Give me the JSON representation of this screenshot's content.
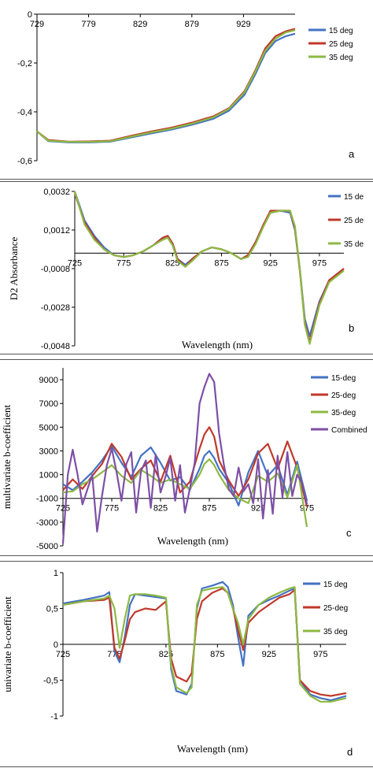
{
  "chart_data": [
    {
      "type": "line",
      "panel_letter": "a",
      "xlabel": "",
      "ylabel": "",
      "xlim": [
        729,
        979
      ],
      "ylim": [
        -0.6,
        0
      ],
      "x_ticks": [
        729,
        779,
        829,
        879,
        929
      ],
      "y_ticks": [
        0,
        -0.2,
        -0.4,
        -0.6
      ],
      "y_tick_labels": [
        "0",
        "-0,2",
        "-0,4",
        "-0,6"
      ],
      "x_axis_at": 0,
      "legend_position": "right",
      "series": [
        {
          "name": "15 deg",
          "color": "#4472C4",
          "x": [
            729,
            740,
            760,
            780,
            800,
            820,
            840,
            860,
            880,
            900,
            915,
            930,
            940,
            950,
            960,
            970,
            979
          ],
          "y": [
            -0.48,
            -0.52,
            -0.525,
            -0.525,
            -0.522,
            -0.505,
            -0.488,
            -0.472,
            -0.452,
            -0.428,
            -0.395,
            -0.33,
            -0.25,
            -0.16,
            -0.11,
            -0.09,
            -0.08
          ]
        },
        {
          "name": "25 deg",
          "color": "#C0392B",
          "x": [
            729,
            740,
            760,
            780,
            800,
            820,
            840,
            860,
            880,
            900,
            915,
            930,
            940,
            950,
            960,
            970,
            979
          ],
          "y": [
            -0.48,
            -0.515,
            -0.522,
            -0.521,
            -0.518,
            -0.498,
            -0.48,
            -0.464,
            -0.443,
            -0.418,
            -0.385,
            -0.315,
            -0.235,
            -0.14,
            -0.09,
            -0.07,
            -0.06
          ]
        },
        {
          "name": "35 deg",
          "color": "#8DB943",
          "x": [
            729,
            740,
            760,
            780,
            800,
            820,
            840,
            860,
            880,
            900,
            915,
            930,
            940,
            950,
            960,
            970,
            979
          ],
          "y": [
            -0.48,
            -0.518,
            -0.523,
            -0.523,
            -0.52,
            -0.502,
            -0.484,
            -0.468,
            -0.447,
            -0.422,
            -0.388,
            -0.32,
            -0.24,
            -0.15,
            -0.1,
            -0.075,
            -0.065
          ]
        }
      ]
    },
    {
      "type": "line",
      "panel_letter": "b",
      "xlabel": "Wavelength (nm)",
      "ylabel": "D2 Absorbance",
      "xlim": [
        725,
        1000
      ],
      "ylim": [
        -0.0048,
        0.0032
      ],
      "x_ticks": [
        725,
        775,
        825,
        875,
        925,
        975
      ],
      "y_ticks": [
        0.0032,
        0.0012,
        -0.0008,
        -0.0028,
        -0.0048
      ],
      "y_tick_labels": [
        "0,0032",
        "0,0012",
        "-0,0008",
        "-0,0028",
        "-0,0048"
      ],
      "x_axis_at": 0,
      "legend_position": "right",
      "series": [
        {
          "name": "15 de",
          "color": "#4472C4",
          "x": [
            725,
            735,
            745,
            755,
            765,
            775,
            785,
            795,
            805,
            815,
            820,
            825,
            830,
            838,
            845,
            855,
            865,
            875,
            885,
            895,
            902,
            910,
            918,
            925,
            935,
            945,
            950,
            955,
            960,
            965,
            975,
            985,
            1000
          ],
          "y": [
            0.0032,
            0.0017,
            0.0009,
            0.0003,
            -0.0001,
            -0.0002,
            -0.0001,
            0.0001,
            0.0004,
            0.0008,
            0.0009,
            0.0005,
            -0.0003,
            -0.0006,
            -0.0003,
            0.0001,
            0.0003,
            0.0002,
            0.0,
            -0.0003,
            -0.0001,
            0.0006,
            0.0015,
            0.0021,
            0.0022,
            0.0021,
            0.0012,
            -0.0008,
            -0.0034,
            -0.0043,
            -0.0025,
            -0.0014,
            -0.0008
          ]
        },
        {
          "name": "25 de",
          "color": "#C0392B",
          "x": [
            725,
            735,
            745,
            755,
            765,
            775,
            785,
            795,
            805,
            815,
            820,
            825,
            830,
            838,
            845,
            855,
            865,
            875,
            885,
            895,
            902,
            910,
            918,
            925,
            935,
            945,
            950,
            955,
            960,
            965,
            975,
            985,
            1000
          ],
          "y": [
            0.0031,
            0.0016,
            0.0008,
            0.0002,
            -0.0001,
            -0.0002,
            -0.0001,
            0.0001,
            0.0004,
            0.0008,
            0.0009,
            0.0005,
            -0.0003,
            -0.0007,
            -0.0003,
            0.0001,
            0.0003,
            0.0002,
            0.0,
            -0.0003,
            -0.0001,
            0.0006,
            0.0015,
            0.0022,
            0.0022,
            0.0022,
            0.0013,
            -0.0009,
            -0.0036,
            -0.0046,
            -0.0026,
            -0.0014,
            -0.0008
          ]
        },
        {
          "name": "35 de",
          "color": "#8DB943",
          "x": [
            725,
            735,
            745,
            755,
            765,
            775,
            785,
            795,
            805,
            815,
            820,
            825,
            830,
            838,
            845,
            855,
            865,
            875,
            885,
            895,
            902,
            910,
            918,
            925,
            935,
            945,
            950,
            955,
            960,
            965,
            975,
            985,
            1000
          ],
          "y": [
            0.0032,
            0.0015,
            0.0007,
            0.0002,
            -0.0001,
            -0.0002,
            -0.0001,
            0.0001,
            0.0004,
            0.0007,
            0.0008,
            0.0004,
            -0.0004,
            -0.0007,
            -0.0004,
            0.0001,
            0.0003,
            0.0002,
            0.0,
            -0.0003,
            -0.0002,
            0.0005,
            0.0014,
            0.0021,
            0.0022,
            0.0022,
            0.0014,
            -0.0008,
            -0.0037,
            -0.0047,
            -0.0027,
            -0.0015,
            -0.0009
          ]
        }
      ]
    },
    {
      "type": "line",
      "panel_letter": "c",
      "xlabel": "Wavelength (nm)",
      "ylabel": "multivariate b-coefficient",
      "xlim": [
        725,
        975
      ],
      "ylim": [
        -5000,
        10000
      ],
      "x_ticks": [
        725,
        775,
        825,
        875,
        925,
        975
      ],
      "y_ticks": [
        9000,
        7000,
        5000,
        3000,
        1000,
        -1000,
        -3000,
        -5000
      ],
      "y_tick_labels": [
        "9000",
        "7000",
        "5000",
        "3000",
        "1000",
        "-1000",
        "-3000",
        "-5000"
      ],
      "x_axis_at": -1000,
      "legend_position": "right",
      "series": [
        {
          "name": "15-deg",
          "color": "#4472C4",
          "x": [
            725,
            735,
            745,
            755,
            765,
            775,
            785,
            795,
            805,
            815,
            825,
            835,
            845,
            855,
            865,
            870,
            875,
            880,
            885,
            895,
            905,
            915,
            925,
            935,
            945,
            955,
            965,
            975
          ],
          "y": [
            200,
            -300,
            400,
            1200,
            2200,
            3400,
            2000,
            800,
            2600,
            3300,
            2000,
            500,
            800,
            -300,
            1500,
            2600,
            3000,
            2400,
            1500,
            300,
            -1600,
            1200,
            3000,
            900,
            1800,
            -700,
            2100,
            -1200
          ]
        },
        {
          "name": "25-deg",
          "color": "#C0392B",
          "x": [
            725,
            735,
            745,
            755,
            765,
            775,
            785,
            795,
            805,
            815,
            825,
            835,
            845,
            855,
            865,
            870,
            875,
            880,
            885,
            895,
            905,
            915,
            925,
            935,
            945,
            955,
            965,
            975
          ],
          "y": [
            -300,
            600,
            -200,
            900,
            1900,
            3600,
            2500,
            600,
            1500,
            2200,
            400,
            2600,
            -500,
            400,
            3200,
            4400,
            5000,
            4200,
            2200,
            500,
            -800,
            600,
            2800,
            3600,
            1500,
            3800,
            1600,
            -1700
          ]
        },
        {
          "name": "35-deg",
          "color": "#8DB943",
          "x": [
            725,
            735,
            745,
            755,
            765,
            775,
            785,
            795,
            805,
            815,
            825,
            835,
            845,
            855,
            865,
            870,
            875,
            880,
            885,
            895,
            905,
            915,
            925,
            935,
            945,
            955,
            965,
            975
          ],
          "y": [
            -500,
            -400,
            200,
            600,
            1200,
            1800,
            900,
            300,
            1400,
            900,
            300,
            600,
            200,
            -200,
            1000,
            1900,
            2300,
            1800,
            1000,
            -300,
            -1000,
            -1400,
            900,
            400,
            1100,
            -900,
            1800,
            -3400
          ]
        },
        {
          "name": "Combined",
          "color": "#7D4FA6",
          "x": [
            725,
            730,
            735,
            740,
            745,
            755,
            760,
            765,
            770,
            775,
            780,
            785,
            790,
            795,
            800,
            805,
            810,
            815,
            820,
            825,
            830,
            835,
            840,
            845,
            850,
            855,
            860,
            865,
            870,
            875,
            880,
            885,
            890,
            895,
            900,
            905,
            910,
            915,
            920,
            925,
            930,
            935,
            940,
            945,
            950,
            955,
            960,
            965,
            970,
            975
          ],
          "y": [
            -4800,
            1000,
            3100,
            1000,
            -1500,
            1000,
            -3800,
            -800,
            1800,
            3200,
            1200,
            -1200,
            1900,
            2900,
            -2200,
            1300,
            2200,
            -1800,
            2700,
            -500,
            800,
            2400,
            -1200,
            1800,
            -2200,
            -200,
            2000,
            7000,
            8400,
            9500,
            8800,
            4500,
            1800,
            -200,
            -800,
            1600,
            -400,
            200,
            -1400,
            2300,
            -2700,
            1400,
            -2300,
            2600,
            -900,
            2900,
            -800,
            1000,
            300,
            -1500
          ]
        }
      ]
    },
    {
      "type": "line",
      "panel_letter": "d",
      "xlabel": "Wavelength (nm)",
      "ylabel": "univariate b-coefficient",
      "xlim": [
        725,
        1000
      ],
      "ylim": [
        -1,
        1
      ],
      "x_ticks": [
        725,
        775,
        825,
        875,
        925,
        975
      ],
      "y_ticks": [
        1,
        0.5,
        0,
        -0.5,
        -1
      ],
      "y_tick_labels": [
        "1",
        "0,5",
        "0",
        "-0,5",
        "-1"
      ],
      "x_axis_at": 0,
      "legend_position": "right",
      "series": [
        {
          "name": "15 deg",
          "color": "#4472C4",
          "x": [
            725,
            745,
            765,
            770,
            775,
            780,
            785,
            790,
            795,
            805,
            815,
            825,
            830,
            835,
            845,
            850,
            855,
            860,
            870,
            880,
            885,
            890,
            895,
            900,
            905,
            915,
            925,
            935,
            945,
            950,
            955,
            965,
            975,
            985,
            1000
          ],
          "y": [
            0.57,
            0.62,
            0.68,
            0.73,
            -0.1,
            -0.25,
            0.1,
            0.55,
            0.7,
            0.68,
            0.66,
            0.64,
            -0.35,
            -0.65,
            -0.7,
            -0.55,
            0.5,
            0.78,
            0.82,
            0.87,
            0.8,
            0.55,
            0.1,
            -0.3,
            0.4,
            0.55,
            0.62,
            0.68,
            0.75,
            0.78,
            -0.5,
            -0.7,
            -0.75,
            -0.78,
            -0.72
          ]
        },
        {
          "name": "25-deg",
          "color": "#C0392B",
          "x": [
            725,
            745,
            765,
            770,
            775,
            780,
            785,
            790,
            795,
            805,
            815,
            825,
            830,
            835,
            845,
            850,
            855,
            860,
            870,
            880,
            885,
            890,
            895,
            900,
            905,
            915,
            925,
            935,
            945,
            950,
            955,
            965,
            975,
            985,
            1000
          ],
          "y": [
            0.55,
            0.6,
            0.62,
            0.65,
            -0.05,
            -0.2,
            0.05,
            0.35,
            0.45,
            0.5,
            0.48,
            0.6,
            -0.2,
            -0.45,
            -0.52,
            -0.4,
            0.35,
            0.6,
            0.72,
            0.78,
            0.72,
            0.5,
            0.2,
            -0.08,
            0.3,
            0.45,
            0.55,
            0.65,
            0.7,
            0.76,
            -0.5,
            -0.65,
            -0.7,
            -0.72,
            -0.68
          ]
        },
        {
          "name": "35 deg",
          "color": "#8DB943",
          "x": [
            725,
            745,
            765,
            770,
            775,
            780,
            785,
            790,
            795,
            805,
            815,
            825,
            830,
            835,
            845,
            850,
            855,
            860,
            870,
            880,
            885,
            890,
            895,
            900,
            905,
            915,
            925,
            935,
            945,
            950,
            955,
            965,
            975,
            985,
            1000
          ],
          "y": [
            0.55,
            0.6,
            0.64,
            0.68,
            0.5,
            -0.05,
            0.35,
            0.68,
            0.7,
            0.7,
            0.68,
            0.65,
            -0.3,
            -0.6,
            -0.68,
            -0.6,
            0.55,
            0.75,
            0.78,
            0.8,
            0.72,
            0.5,
            0.3,
            0.0,
            0.35,
            0.55,
            0.65,
            0.72,
            0.78,
            0.8,
            -0.55,
            -0.72,
            -0.8,
            -0.8,
            -0.75
          ]
        }
      ]
    }
  ]
}
